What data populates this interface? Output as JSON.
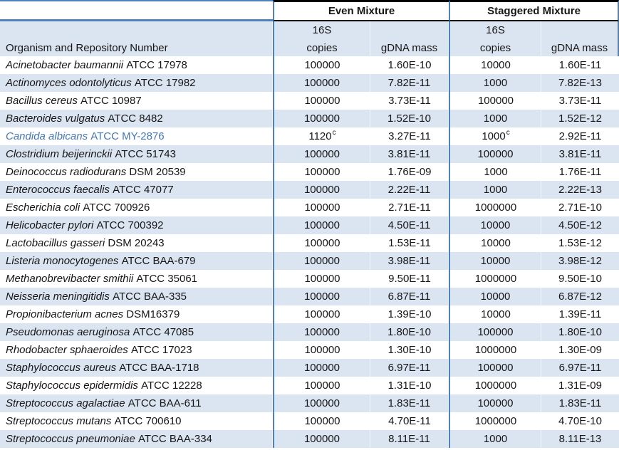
{
  "table": {
    "group_headers": {
      "even": "Even Mixture",
      "staggered": "Staggered Mixture"
    },
    "subheaders": {
      "organism": "Organism and Repository Number",
      "s16": "16S",
      "copies": "copies",
      "gdna": "gDNA mass"
    },
    "colors": {
      "band_fill": "#dbe5f1",
      "blue_border": "#4f81bd",
      "bottom_rule": "#1c2f4a",
      "header_rule": "#000000",
      "highlight_text": "#4576b5"
    },
    "rows": [
      {
        "name": "Acinetobacter baumannii",
        "repo": "ATCC 17978",
        "even_copies": "100000",
        "even_gdna": "1.60E-10",
        "stag_copies": "10000",
        "stag_gdna": "1.60E-11"
      },
      {
        "name": "Actinomyces odontolyticus",
        "repo": "ATCC 17982",
        "even_copies": "100000",
        "even_gdna": "7.82E-11",
        "stag_copies": "1000",
        "stag_gdna": "7.82E-13"
      },
      {
        "name": "Bacillus cereus",
        "repo": "ATCC 10987",
        "even_copies": "100000",
        "even_gdna": "3.73E-11",
        "stag_copies": "100000",
        "stag_gdna": "3.73E-11"
      },
      {
        "name": "Bacteroides vulgatus",
        "repo": "ATCC 8482",
        "even_copies": "100000",
        "even_gdna": "1.52E-10",
        "stag_copies": "1000",
        "stag_gdna": "1.52E-12"
      },
      {
        "name": "Candida albicans",
        "repo": "ATCC MY-2876",
        "even_copies": "1120^c",
        "even_gdna": "3.27E-11",
        "stag_copies": "1000^c",
        "stag_gdna": "2.92E-11",
        "highlight": true
      },
      {
        "name": "Clostridium beijerinckii",
        "repo": "ATCC 51743",
        "even_copies": "100000",
        "even_gdna": "3.81E-11",
        "stag_copies": "100000",
        "stag_gdna": "3.81E-11"
      },
      {
        "name": "Deinococcus radiodurans",
        "repo": "DSM 20539",
        "even_copies": "100000",
        "even_gdna": "1.76E-09",
        "stag_copies": "1000",
        "stag_gdna": "1.76E-11"
      },
      {
        "name": "Enterococcus faecalis",
        "repo": "ATCC 47077",
        "even_copies": "100000",
        "even_gdna": "2.22E-11",
        "stag_copies": "1000",
        "stag_gdna": "2.22E-13"
      },
      {
        "name": "Escherichia coli",
        "repo": "ATCC 700926",
        "even_copies": "100000",
        "even_gdna": "2.71E-11",
        "stag_copies": "1000000",
        "stag_gdna": "2.71E-10"
      },
      {
        "name": "Helicobacter pylori",
        "repo": "ATCC 700392",
        "even_copies": "100000",
        "even_gdna": "4.50E-11",
        "stag_copies": "10000",
        "stag_gdna": "4.50E-12"
      },
      {
        "name": "Lactobacillus gasseri",
        "repo": "DSM 20243",
        "even_copies": "100000",
        "even_gdna": "1.53E-11",
        "stag_copies": "10000",
        "stag_gdna": "1.53E-12"
      },
      {
        "name": "Listeria monocytogenes",
        "repo": "ATCC BAA-679",
        "even_copies": "100000",
        "even_gdna": "3.98E-11",
        "stag_copies": "10000",
        "stag_gdna": "3.98E-12"
      },
      {
        "name": "Methanobrevibacter smithii",
        "repo": "ATCC 35061",
        "even_copies": "100000",
        "even_gdna": "9.50E-11",
        "stag_copies": "1000000",
        "stag_gdna": "9.50E-10"
      },
      {
        "name": "Neisseria meningitidis",
        "repo": "ATCC BAA-335",
        "even_copies": "100000",
        "even_gdna": "6.87E-11",
        "stag_copies": "10000",
        "stag_gdna": "6.87E-12"
      },
      {
        "name": "Propionibacterium acnes",
        "repo": "DSM16379",
        "even_copies": "100000",
        "even_gdna": "1.39E-10",
        "stag_copies": "10000",
        "stag_gdna": "1.39E-11"
      },
      {
        "name": "Pseudomonas aeruginosa",
        "repo": "ATCC 47085",
        "even_copies": "100000",
        "even_gdna": "1.80E-10",
        "stag_copies": "100000",
        "stag_gdna": "1.80E-10"
      },
      {
        "name": "Rhodobacter sphaeroides",
        "repo": "ATCC 17023",
        "even_copies": "100000",
        "even_gdna": "1.30E-10",
        "stag_copies": "1000000",
        "stag_gdna": "1.30E-09"
      },
      {
        "name": "Staphylococcus aureus",
        "repo": "ATCC BAA-1718",
        "even_copies": "100000",
        "even_gdna": "6.97E-11",
        "stag_copies": "100000",
        "stag_gdna": "6.97E-11"
      },
      {
        "name": "Staphylococcus epidermidis",
        "repo": "ATCC 12228",
        "even_copies": "100000",
        "even_gdna": "1.31E-10",
        "stag_copies": "1000000",
        "stag_gdna": "1.31E-09"
      },
      {
        "name": "Streptococcus agalactiae",
        "repo": "ATCC BAA-611",
        "even_copies": "100000",
        "even_gdna": "1.83E-11",
        "stag_copies": "100000",
        "stag_gdna": "1.83E-11"
      },
      {
        "name": "Streptococcus mutans",
        "repo": "ATCC 700610",
        "even_copies": "100000",
        "even_gdna": "4.70E-11",
        "stag_copies": "1000000",
        "stag_gdna": "4.70E-10"
      },
      {
        "name": "Streptococcus pneumoniae",
        "repo": "ATCC BAA-334",
        "even_copies": "100000",
        "even_gdna": "8.11E-11",
        "stag_copies": "1000",
        "stag_gdna": "8.11E-13"
      }
    ]
  }
}
